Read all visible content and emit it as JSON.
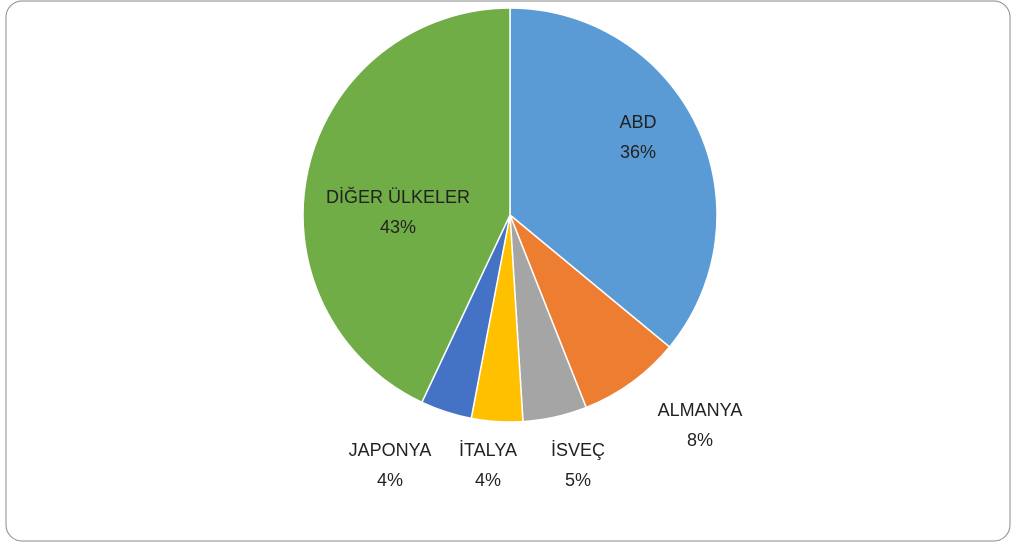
{
  "chart_data": {
    "type": "pie",
    "categories": [
      "ABD",
      "ALMANYA",
      "İSVEÇ",
      "İTALYA",
      "JAPONYA",
      "DİĞER ÜLKELER"
    ],
    "values": [
      36,
      8,
      5,
      4,
      4,
      43
    ],
    "value_labels": [
      "36%",
      "8%",
      "5%",
      "4%",
      "4%",
      "43%"
    ],
    "colors": [
      "#5b9bd5",
      "#ed7d31",
      "#a5a5a5",
      "#ffc000",
      "#4472c4",
      "#70ad47"
    ]
  }
}
